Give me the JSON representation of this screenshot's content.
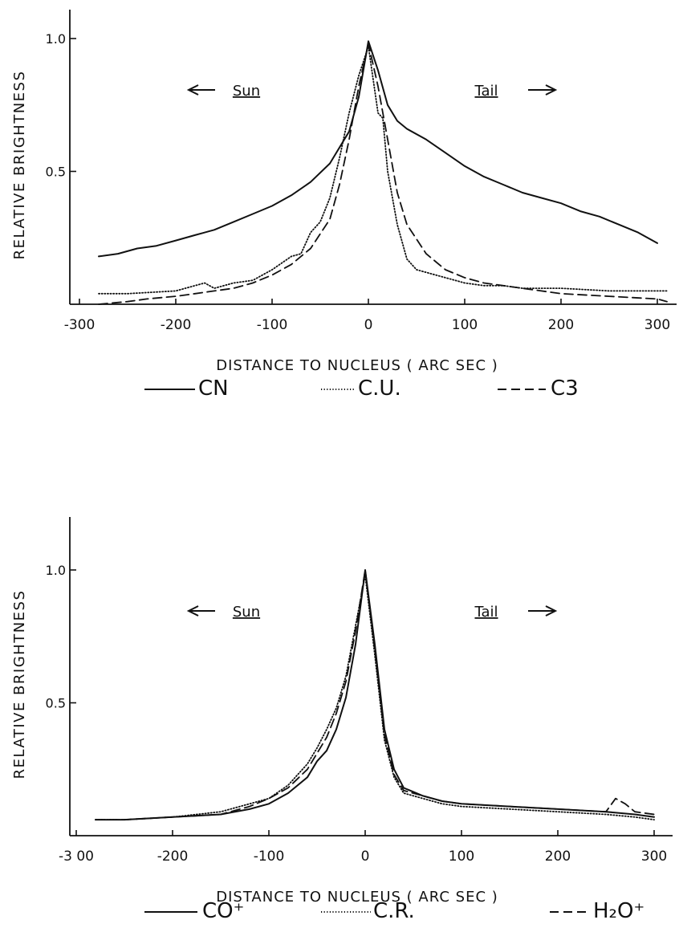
{
  "chart_data": [
    {
      "type": "line",
      "xlabel": "DISTANCE TO NUCLEUS  ( ARC SEC )",
      "ylabel": "RELATIVE BRIGHTNESS",
      "xlim": [
        -300,
        310
      ],
      "ylim": [
        0,
        1.1
      ],
      "xticks": [
        -300,
        -200,
        -100,
        0,
        100,
        200,
        300
      ],
      "xtick_labels": [
        "-300",
        "-200",
        "-100",
        "0",
        "100",
        "200",
        "300"
      ],
      "yticks": [
        0.5,
        1.0
      ],
      "ytick_labels": [
        "0.5",
        "1.0"
      ],
      "grid": false,
      "annotations": {
        "left": "Sun",
        "right": "Tail"
      },
      "legend": {
        "placement": "bottom",
        "items": [
          "CN",
          "C.U.",
          "C3"
        ]
      },
      "series": [
        {
          "name": "CN",
          "style": "solid",
          "x": [
            -280,
            -260,
            -240,
            -220,
            -200,
            -180,
            -160,
            -140,
            -120,
            -100,
            -80,
            -60,
            -40,
            -20,
            -10,
            0,
            10,
            20,
            30,
            40,
            60,
            80,
            100,
            120,
            140,
            160,
            180,
            200,
            220,
            240,
            260,
            280,
            300
          ],
          "y": [
            0.18,
            0.19,
            0.21,
            0.22,
            0.24,
            0.26,
            0.28,
            0.31,
            0.34,
            0.37,
            0.41,
            0.46,
            0.53,
            0.65,
            0.78,
            0.99,
            0.88,
            0.75,
            0.69,
            0.66,
            0.62,
            0.57,
            0.52,
            0.48,
            0.45,
            0.42,
            0.4,
            0.38,
            0.35,
            0.33,
            0.3,
            0.27,
            0.23
          ]
        },
        {
          "name": "C.U.",
          "style": "dotted",
          "x": [
            -280,
            -250,
            -200,
            -180,
            -170,
            -160,
            -140,
            -120,
            -100,
            -80,
            -70,
            -60,
            -50,
            -40,
            -30,
            -20,
            -10,
            0,
            10,
            15,
            20,
            30,
            40,
            50,
            60,
            80,
            100,
            120,
            140,
            160,
            200,
            250,
            310
          ],
          "y": [
            0.04,
            0.04,
            0.05,
            0.07,
            0.08,
            0.06,
            0.08,
            0.09,
            0.13,
            0.18,
            0.19,
            0.27,
            0.31,
            0.4,
            0.55,
            0.72,
            0.86,
            0.97,
            0.72,
            0.7,
            0.5,
            0.3,
            0.17,
            0.13,
            0.12,
            0.1,
            0.08,
            0.07,
            0.07,
            0.06,
            0.06,
            0.05,
            0.05
          ]
        },
        {
          "name": "C3",
          "style": "dashed",
          "x": [
            -280,
            -250,
            -230,
            -200,
            -180,
            -160,
            -140,
            -120,
            -100,
            -80,
            -60,
            -40,
            -30,
            -20,
            -10,
            0,
            10,
            20,
            30,
            40,
            60,
            80,
            100,
            120,
            140,
            160,
            200,
            250,
            300,
            310
          ],
          "y": [
            0.0,
            0.01,
            0.02,
            0.03,
            0.04,
            0.05,
            0.06,
            0.08,
            0.11,
            0.15,
            0.21,
            0.32,
            0.45,
            0.62,
            0.82,
            0.98,
            0.82,
            0.62,
            0.42,
            0.3,
            0.19,
            0.13,
            0.1,
            0.08,
            0.07,
            0.06,
            0.04,
            0.03,
            0.02,
            0.01
          ]
        }
      ]
    },
    {
      "type": "line",
      "xlabel": "DISTANCE TO NUCLEUS  ( ARC SEC )",
      "ylabel": "RELATIVE BRIGHTNESS",
      "xlim": [
        -300,
        310
      ],
      "ylim": [
        0,
        1.1
      ],
      "xticks": [
        -300,
        -200,
        -100,
        0,
        100,
        200,
        300
      ],
      "xtick_labels": [
        "-3 00",
        "-200",
        "-100",
        "0",
        "100",
        "200",
        "300"
      ],
      "yticks": [
        0.5,
        1.0
      ],
      "ytick_labels": [
        "0.5",
        "1.0"
      ],
      "grid": false,
      "annotations": {
        "left": "Sun",
        "right": "Tail"
      },
      "legend": {
        "placement": "bottom",
        "items": [
          "CO⁺",
          "C.R.",
          "H₂O⁺"
        ]
      },
      "series": [
        {
          "name": "CO⁺",
          "style": "solid",
          "x": [
            -280,
            -250,
            -200,
            -150,
            -120,
            -100,
            -80,
            -60,
            -50,
            -40,
            -30,
            -20,
            -10,
            0,
            10,
            20,
            30,
            40,
            60,
            80,
            100,
            150,
            200,
            250,
            280,
            300
          ],
          "y": [
            0.06,
            0.06,
            0.07,
            0.08,
            0.1,
            0.12,
            0.16,
            0.22,
            0.28,
            0.32,
            0.4,
            0.52,
            0.72,
            1.0,
            0.72,
            0.4,
            0.25,
            0.18,
            0.15,
            0.13,
            0.12,
            0.11,
            0.1,
            0.09,
            0.08,
            0.07
          ]
        },
        {
          "name": "C.R.",
          "style": "dotted",
          "x": [
            -280,
            -250,
            -200,
            -150,
            -120,
            -100,
            -80,
            -60,
            -50,
            -40,
            -30,
            -20,
            -10,
            0,
            10,
            20,
            30,
            40,
            60,
            80,
            100,
            150,
            200,
            250,
            280,
            300
          ],
          "y": [
            0.06,
            0.06,
            0.07,
            0.09,
            0.12,
            0.14,
            0.19,
            0.27,
            0.33,
            0.4,
            0.48,
            0.6,
            0.79,
            0.98,
            0.68,
            0.36,
            0.22,
            0.16,
            0.14,
            0.12,
            0.11,
            0.1,
            0.09,
            0.08,
            0.07,
            0.06
          ]
        },
        {
          "name": "H₂O⁺",
          "style": "dashed",
          "x": [
            -280,
            -250,
            -200,
            -150,
            -120,
            -100,
            -80,
            -60,
            -50,
            -40,
            -30,
            -20,
            -10,
            0,
            10,
            20,
            30,
            40,
            60,
            80,
            100,
            150,
            200,
            250,
            260,
            270,
            280,
            300
          ],
          "y": [
            0.06,
            0.06,
            0.07,
            0.08,
            0.11,
            0.14,
            0.18,
            0.25,
            0.31,
            0.37,
            0.46,
            0.58,
            0.77,
            1.0,
            0.7,
            0.38,
            0.23,
            0.17,
            0.15,
            0.13,
            0.12,
            0.11,
            0.1,
            0.09,
            0.14,
            0.12,
            0.09,
            0.08
          ]
        }
      ]
    }
  ]
}
